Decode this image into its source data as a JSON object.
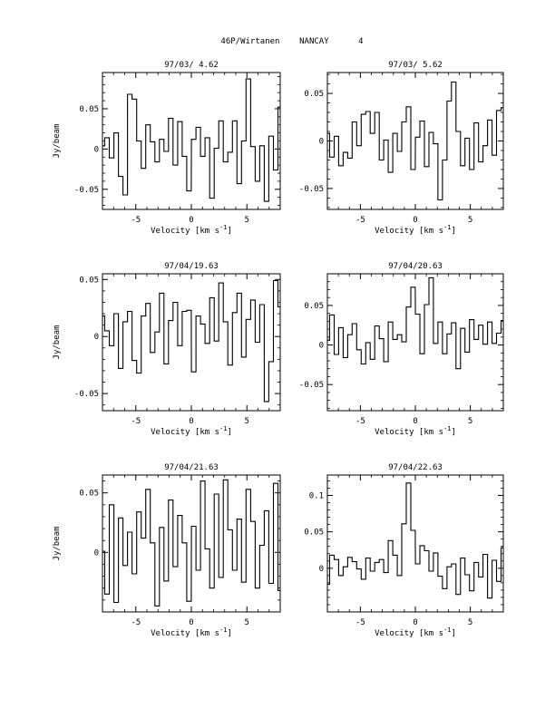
{
  "header": "46P/Wirtanen    NANCAY      4",
  "chart_data": [
    {
      "type": "line",
      "title": "97/03/ 4.62",
      "xlabel": "Velocity [km s",
      "xlabel_exp": "-1",
      "xlabel_close": "]",
      "ylabel": "Jy/beam",
      "xlim": [
        -8,
        8
      ],
      "ylim": [
        -0.075,
        0.095
      ],
      "xticks": [
        -5,
        0,
        5
      ],
      "xticklabels": [
        "-5",
        "0",
        "5"
      ],
      "yticks": [
        -0.05,
        0,
        0.05
      ],
      "yticklabels": [
        "-0.05",
        "0",
        "0.05"
      ],
      "series": [
        {
          "x": [
            -8.0,
            -7.59,
            -7.18,
            -6.77,
            -6.36,
            -5.95,
            -5.54,
            -5.13,
            -4.72,
            -4.31,
            -3.9,
            -3.49,
            -3.08,
            -2.67,
            -2.26,
            -1.85,
            -1.44,
            -1.03,
            -0.62,
            -0.21,
            0.21,
            0.62,
            1.03,
            1.44,
            1.85,
            2.26,
            2.67,
            3.08,
            3.49,
            3.9,
            4.31,
            4.72,
            5.13,
            5.54,
            5.95,
            6.36,
            6.77,
            7.18,
            7.59,
            8.0
          ],
          "y": [
            0.004,
            0.014,
            -0.011,
            0.02,
            -0.034,
            -0.057,
            0.068,
            0.062,
            0.01,
            -0.024,
            0.03,
            0.009,
            -0.016,
            0.012,
            -0.003,
            0.038,
            -0.02,
            0.034,
            -0.009,
            -0.052,
            0.012,
            0.027,
            -0.009,
            0.014,
            -0.061,
            0.001,
            0.035,
            -0.016,
            -0.004,
            0.035,
            -0.043,
            0.01,
            0.087,
            0.003,
            -0.04,
            0.004,
            -0.065,
            0.016,
            -0.026,
            0.052
          ]
        }
      ]
    },
    {
      "type": "line",
      "title": "97/03/ 5.62",
      "xlabel": "Velocity [km s",
      "xlabel_exp": "-1",
      "xlabel_close": "]",
      "ylabel": "",
      "xlim": [
        -8,
        8
      ],
      "ylim": [
        -0.072,
        0.072
      ],
      "xticks": [
        -5,
        0,
        5
      ],
      "xticklabels": [
        "-5",
        "0",
        "5"
      ],
      "yticks": [
        -0.05,
        0,
        0.05
      ],
      "yticklabels": [
        "-0.05",
        "0",
        "0.05"
      ],
      "series": [
        {
          "x": [
            -8.0,
            -7.59,
            -7.18,
            -6.77,
            -6.36,
            -5.95,
            -5.54,
            -5.13,
            -4.72,
            -4.31,
            -3.9,
            -3.49,
            -3.08,
            -2.67,
            -2.26,
            -1.85,
            -1.44,
            -1.03,
            -0.62,
            -0.21,
            0.21,
            0.62,
            1.03,
            1.44,
            1.85,
            2.26,
            2.67,
            3.08,
            3.49,
            3.9,
            4.31,
            4.72,
            5.13,
            5.54,
            5.95,
            6.36,
            6.77,
            7.18,
            7.59,
            8.0
          ],
          "y": [
            0.008,
            -0.017,
            0.005,
            -0.026,
            -0.012,
            -0.018,
            0.02,
            -0.005,
            0.028,
            0.031,
            0.008,
            0.03,
            -0.02,
            0.001,
            -0.033,
            0.008,
            -0.011,
            0.02,
            0.036,
            -0.03,
            0.004,
            0.021,
            -0.027,
            0.009,
            -0.003,
            -0.062,
            -0.02,
            0.042,
            0.062,
            0.01,
            -0.026,
            0.003,
            -0.03,
            0.019,
            -0.022,
            -0.005,
            0.022,
            -0.015,
            0.032,
            0.035
          ]
        }
      ]
    },
    {
      "type": "line",
      "title": "97/04/19.63",
      "xlabel": "Velocity [km s",
      "xlabel_exp": "-1",
      "xlabel_close": "]",
      "ylabel": "Jy/beam",
      "xlim": [
        -8,
        8
      ],
      "ylim": [
        -0.065,
        0.055
      ],
      "xticks": [
        -5,
        0,
        5
      ],
      "xticklabels": [
        "-5",
        "0",
        "5"
      ],
      "yticks": [
        -0.05,
        0,
        0.05
      ],
      "yticklabels": [
        "-0.05",
        "0",
        "0.05"
      ],
      "series": [
        {
          "x": [
            -8.0,
            -7.59,
            -7.18,
            -6.77,
            -6.36,
            -5.95,
            -5.54,
            -5.13,
            -4.72,
            -4.31,
            -3.9,
            -3.49,
            -3.08,
            -2.67,
            -2.26,
            -1.85,
            -1.44,
            -1.03,
            -0.62,
            -0.21,
            0.21,
            0.62,
            1.03,
            1.44,
            1.85,
            2.26,
            2.67,
            3.08,
            3.49,
            3.9,
            4.31,
            4.72,
            5.13,
            5.54,
            5.95,
            6.36,
            6.77,
            7.18,
            7.59,
            8.0
          ],
          "y": [
            0.018,
            0.005,
            -0.008,
            0.02,
            -0.028,
            0.013,
            0.022,
            -0.021,
            -0.032,
            0.018,
            0.029,
            -0.014,
            0.004,
            0.038,
            -0.024,
            0.014,
            0.03,
            -0.008,
            0.022,
            0.023,
            -0.031,
            0.018,
            0.011,
            -0.006,
            0.034,
            -0.004,
            0.047,
            0.013,
            -0.025,
            0.021,
            0.038,
            -0.018,
            0.015,
            0.032,
            -0.005,
            0.028,
            -0.057,
            -0.022,
            0.049,
            0.026
          ]
        }
      ]
    },
    {
      "type": "line",
      "title": "97/04/20.63",
      "xlabel": "Velocity [km s",
      "xlabel_exp": "-1",
      "xlabel_close": "]",
      "ylabel": "",
      "xlim": [
        -8,
        8
      ],
      "ylim": [
        -0.083,
        0.09
      ],
      "xticks": [
        -5,
        0,
        5
      ],
      "xticklabels": [
        "-5",
        "0",
        "5"
      ],
      "yticks": [
        -0.05,
        0,
        0.05
      ],
      "yticklabels": [
        "-0.05",
        "0",
        "0.05"
      ],
      "series": [
        {
          "x": [
            -8.0,
            -7.59,
            -7.18,
            -6.77,
            -6.36,
            -5.95,
            -5.54,
            -5.13,
            -4.72,
            -4.31,
            -3.9,
            -3.49,
            -3.08,
            -2.67,
            -2.26,
            -1.85,
            -1.44,
            -1.03,
            -0.62,
            -0.21,
            0.21,
            0.62,
            1.03,
            1.44,
            1.85,
            2.26,
            2.67,
            3.08,
            3.49,
            3.9,
            4.31,
            4.72,
            5.13,
            5.54,
            5.95,
            6.36,
            6.77,
            7.18,
            7.59,
            8.0
          ],
          "y": [
            0.006,
            0.038,
            -0.012,
            0.022,
            -0.016,
            0.013,
            0.027,
            -0.006,
            -0.024,
            0.003,
            -0.018,
            0.024,
            0.008,
            -0.021,
            0.029,
            0.007,
            0.013,
            0.004,
            0.048,
            0.073,
            0.039,
            -0.011,
            0.051,
            0.085,
            0.002,
            0.029,
            -0.011,
            0.014,
            0.028,
            -0.03,
            0.021,
            -0.009,
            0.032,
            0.007,
            0.025,
            0.001,
            0.029,
            0.002,
            0.015,
            0.031
          ]
        }
      ]
    },
    {
      "type": "line",
      "title": "97/04/21.63",
      "xlabel": "Velocity [km s",
      "xlabel_exp": "-1",
      "xlabel_close": "]",
      "ylabel": "Jy/beam",
      "xlim": [
        -8,
        8
      ],
      "ylim": [
        -0.05,
        0.065
      ],
      "xticks": [
        -5,
        0,
        5
      ],
      "xticklabels": [
        "-5",
        "0",
        "5"
      ],
      "yticks": [
        0,
        0.05
      ],
      "yticklabels": [
        "0",
        "0.05"
      ],
      "series": [
        {
          "x": [
            -8.0,
            -7.59,
            -7.18,
            -6.77,
            -6.36,
            -5.95,
            -5.54,
            -5.13,
            -4.72,
            -4.31,
            -3.9,
            -3.49,
            -3.08,
            -2.67,
            -2.26,
            -1.85,
            -1.44,
            -1.03,
            -0.62,
            -0.21,
            0.21,
            0.62,
            1.03,
            1.44,
            1.85,
            2.26,
            2.67,
            3.08,
            3.49,
            3.9,
            4.31,
            4.72,
            5.13,
            5.54,
            5.95,
            6.36,
            6.77,
            7.18,
            7.59,
            8.0
          ],
          "y": [
            0.001,
            -0.035,
            0.04,
            -0.042,
            0.029,
            -0.011,
            0.017,
            -0.018,
            0.034,
            0.012,
            0.053,
            0.008,
            -0.045,
            0.021,
            -0.024,
            0.044,
            -0.012,
            0.031,
            0.008,
            -0.041,
            0.022,
            -0.015,
            0.06,
            0.003,
            -0.03,
            0.049,
            -0.021,
            0.061,
            0.019,
            -0.015,
            0.028,
            -0.025,
            0.053,
            0.026,
            -0.03,
            0.006,
            0.035,
            -0.026,
            0.058,
            -0.032
          ]
        }
      ]
    },
    {
      "type": "line",
      "title": "97/04/22.63",
      "xlabel": "Velocity [km s",
      "xlabel_exp": "-1",
      "xlabel_close": "]",
      "ylabel": "",
      "xlim": [
        -8,
        8
      ],
      "ylim": [
        -0.06,
        0.128
      ],
      "xticks": [
        -5,
        0,
        5
      ],
      "xticklabels": [
        "-5",
        "0",
        "5"
      ],
      "yticks": [
        0,
        0.05,
        0.1
      ],
      "yticklabels": [
        "0",
        "0.05",
        "0.1"
      ],
      "series": [
        {
          "x": [
            -8.0,
            -7.59,
            -7.18,
            -6.77,
            -6.36,
            -5.95,
            -5.54,
            -5.13,
            -4.72,
            -4.31,
            -3.9,
            -3.49,
            -3.08,
            -2.67,
            -2.26,
            -1.85,
            -1.44,
            -1.03,
            -0.62,
            -0.21,
            0.21,
            0.62,
            1.03,
            1.44,
            1.85,
            2.26,
            2.67,
            3.08,
            3.49,
            3.9,
            4.31,
            4.72,
            5.13,
            5.54,
            5.95,
            6.36,
            6.77,
            7.18,
            7.59,
            8.0
          ],
          "y": [
            -0.022,
            0.018,
            0.012,
            -0.01,
            0.002,
            0.015,
            0.009,
            -0.001,
            -0.015,
            0.014,
            -0.004,
            0.008,
            0.012,
            -0.006,
            0.038,
            0.018,
            -0.01,
            0.061,
            0.117,
            0.052,
            0.006,
            0.031,
            0.024,
            -0.004,
            0.021,
            -0.011,
            -0.028,
            0.002,
            0.006,
            -0.036,
            0.014,
            -0.009,
            -0.031,
            0.008,
            -0.012,
            0.019,
            -0.041,
            0.011,
            -0.018,
            0.028
          ]
        }
      ]
    }
  ]
}
